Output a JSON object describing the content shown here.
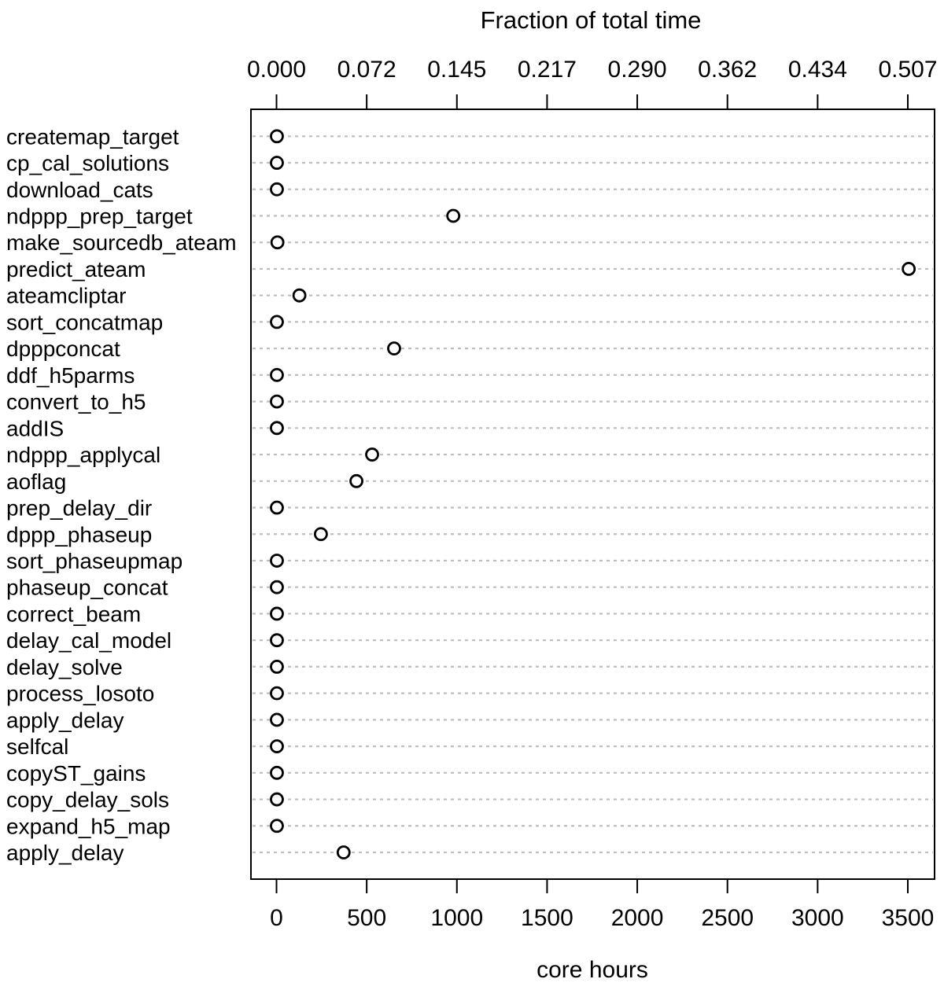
{
  "chart": {
    "top_axis_title": "Fraction of total time",
    "bottom_axis_title": "core hours"
  },
  "chart_data": {
    "type": "scatter",
    "variant": "cleveland-dotchart",
    "title": "Fraction of total time",
    "xlabel": "core hours",
    "categories": [
      "createmap_target",
      "cp_cal_solutions",
      "download_cats",
      "ndppp_prep_target",
      "make_sourcedb_ateam",
      "predict_ateam",
      "ateamcliptar",
      "sort_concatmap",
      "dpppconcat",
      "ddf_h5parms",
      "convert_to_h5",
      "addIS",
      "ndppp_applycal",
      "aoflag",
      "prep_delay_dir",
      "dppp_phaseup",
      "sort_phaseupmap",
      "phaseup_concat",
      "correct_beam",
      "delay_cal_model",
      "delay_solve",
      "process_losoto",
      "apply_delay",
      "selfcal",
      "copyST_gains",
      "copy_delay_sols",
      "expand_h5_map",
      "apply_delay"
    ],
    "values_core_hours": [
      2,
      2,
      2,
      980,
      5,
      3505,
      127,
      2,
      652,
      2,
      2,
      2,
      530,
      443,
      2,
      246,
      2,
      2,
      2,
      2,
      2,
      2,
      2,
      2,
      2,
      2,
      2,
      372
    ],
    "x_bottom_axis": {
      "label": "core hours",
      "ticks": [
        0,
        500,
        1000,
        1500,
        2000,
        2500,
        3000,
        3500
      ],
      "position": "bottom"
    },
    "x_top_axis": {
      "label": "Fraction of total time",
      "tick_labels": [
        "0.000",
        "0.072",
        "0.145",
        "0.217",
        "0.290",
        "0.362",
        "0.434",
        "0.507"
      ],
      "tick_positions_core_hours": [
        0,
        500,
        1000,
        1500,
        2000,
        2500,
        3000,
        3500
      ],
      "position": "top"
    },
    "xlim": [
      -142,
      3650
    ],
    "grid": "horizontal dotted row lines",
    "legend": "none",
    "point_style": "open-circle",
    "colors": {
      "row_line": "#bebebe",
      "point_stroke": "#000000",
      "point_fill": "#ffffff",
      "axis": "#000000",
      "text": "#000000",
      "background": "#ffffff"
    }
  }
}
